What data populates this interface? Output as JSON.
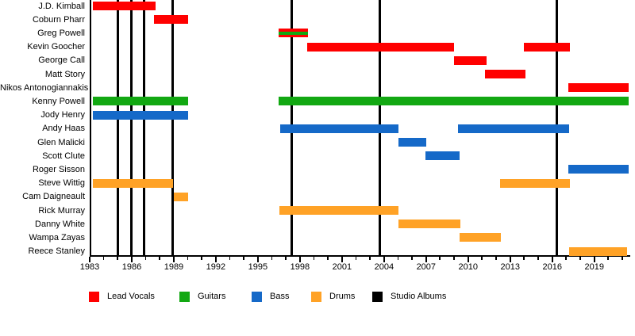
{
  "chart_data": {
    "type": "timeline",
    "subject": "band-members-timeline",
    "grid": "off",
    "legend_position": "bottom",
    "x_axis": {
      "min": 1983,
      "max": 2021.45,
      "major_ticks": [
        1983,
        1986,
        1989,
        1992,
        1995,
        1998,
        2001,
        2004,
        2007,
        2010,
        2013,
        2016,
        2019
      ],
      "minor_tick_interval": 1
    },
    "colors": {
      "Lead Vocals": "#FF0000",
      "Guitars": "#12A812",
      "Bass": "#1569C8",
      "Drums": "#FFA226",
      "Studio Albums": "#000000"
    },
    "rows": [
      {
        "name": "J.D. Kimball",
        "role": "Lead Vocals",
        "spans": [
          [
            1983.2,
            1987.7
          ]
        ]
      },
      {
        "name": "Coburn Pharr",
        "role": "Lead Vocals",
        "spans": [
          [
            1987.6,
            1990.0
          ]
        ]
      },
      {
        "name": "Greg Powell",
        "role": "Lead Vocals",
        "stripe": "Guitars",
        "spans": [
          [
            1996.5,
            1998.6
          ]
        ]
      },
      {
        "name": "Kevin Goocher",
        "role": "Lead Vocals",
        "spans": [
          [
            1998.5,
            2009.0
          ],
          [
            2014.0,
            2017.25
          ]
        ]
      },
      {
        "name": "George Call",
        "role": "Lead Vocals",
        "spans": [
          [
            2009.0,
            2011.3
          ]
        ]
      },
      {
        "name": "Matt Story",
        "role": "Lead Vocals",
        "spans": [
          [
            2011.2,
            2014.1
          ]
        ]
      },
      {
        "name": "Nikos Antonogiannakis",
        "role": "Lead Vocals",
        "spans": [
          [
            2017.15,
            2021.45
          ]
        ]
      },
      {
        "name": "Kenny Powell",
        "role": "Guitars",
        "spans": [
          [
            1983.2,
            1990.0
          ],
          [
            1996.5,
            2021.45
          ]
        ]
      },
      {
        "name": "Jody Henry",
        "role": "Bass",
        "spans": [
          [
            1983.2,
            1990.0
          ]
        ]
      },
      {
        "name": "Andy Haas",
        "role": "Bass",
        "spans": [
          [
            1996.6,
            2005.05
          ],
          [
            2009.3,
            2017.2
          ]
        ]
      },
      {
        "name": "Glen Malicki",
        "role": "Bass",
        "spans": [
          [
            2005.0,
            2007.0
          ]
        ]
      },
      {
        "name": "Scott Clute",
        "role": "Bass",
        "spans": [
          [
            2006.95,
            2009.4
          ]
        ]
      },
      {
        "name": "Roger Sisson",
        "role": "Bass",
        "spans": [
          [
            2017.15,
            2021.45
          ]
        ]
      },
      {
        "name": "Steve Wittig",
        "role": "Drums",
        "spans": [
          [
            1983.2,
            1988.95
          ],
          [
            2012.25,
            2017.25
          ]
        ]
      },
      {
        "name": "Cam Daigneault",
        "role": "Drums",
        "spans": [
          [
            1989.0,
            1990.0
          ]
        ]
      },
      {
        "name": "Rick Murray",
        "role": "Drums",
        "spans": [
          [
            1996.55,
            2005.05
          ]
        ]
      },
      {
        "name": "Danny White",
        "role": "Drums",
        "spans": [
          [
            2005.0,
            2009.45
          ]
        ]
      },
      {
        "name": "Wampa Zayas",
        "role": "Drums",
        "spans": [
          [
            2009.4,
            2012.35
          ]
        ]
      },
      {
        "name": "Reece Stanley",
        "role": "Drums",
        "spans": [
          [
            2017.2,
            2021.35
          ]
        ]
      }
    ],
    "studio_album_years": [
      1985.0,
      1985.95,
      1986.9,
      1988.9,
      1997.4,
      2003.7,
      2016.3
    ],
    "legend": [
      {
        "label": "Lead Vocals",
        "color": "#FF0000"
      },
      {
        "label": "Guitars",
        "color": "#12A812"
      },
      {
        "label": "Bass",
        "color": "#1569C8"
      },
      {
        "label": "Drums",
        "color": "#FFA226"
      },
      {
        "label": "Studio Albums",
        "color": "#000000"
      }
    ]
  }
}
